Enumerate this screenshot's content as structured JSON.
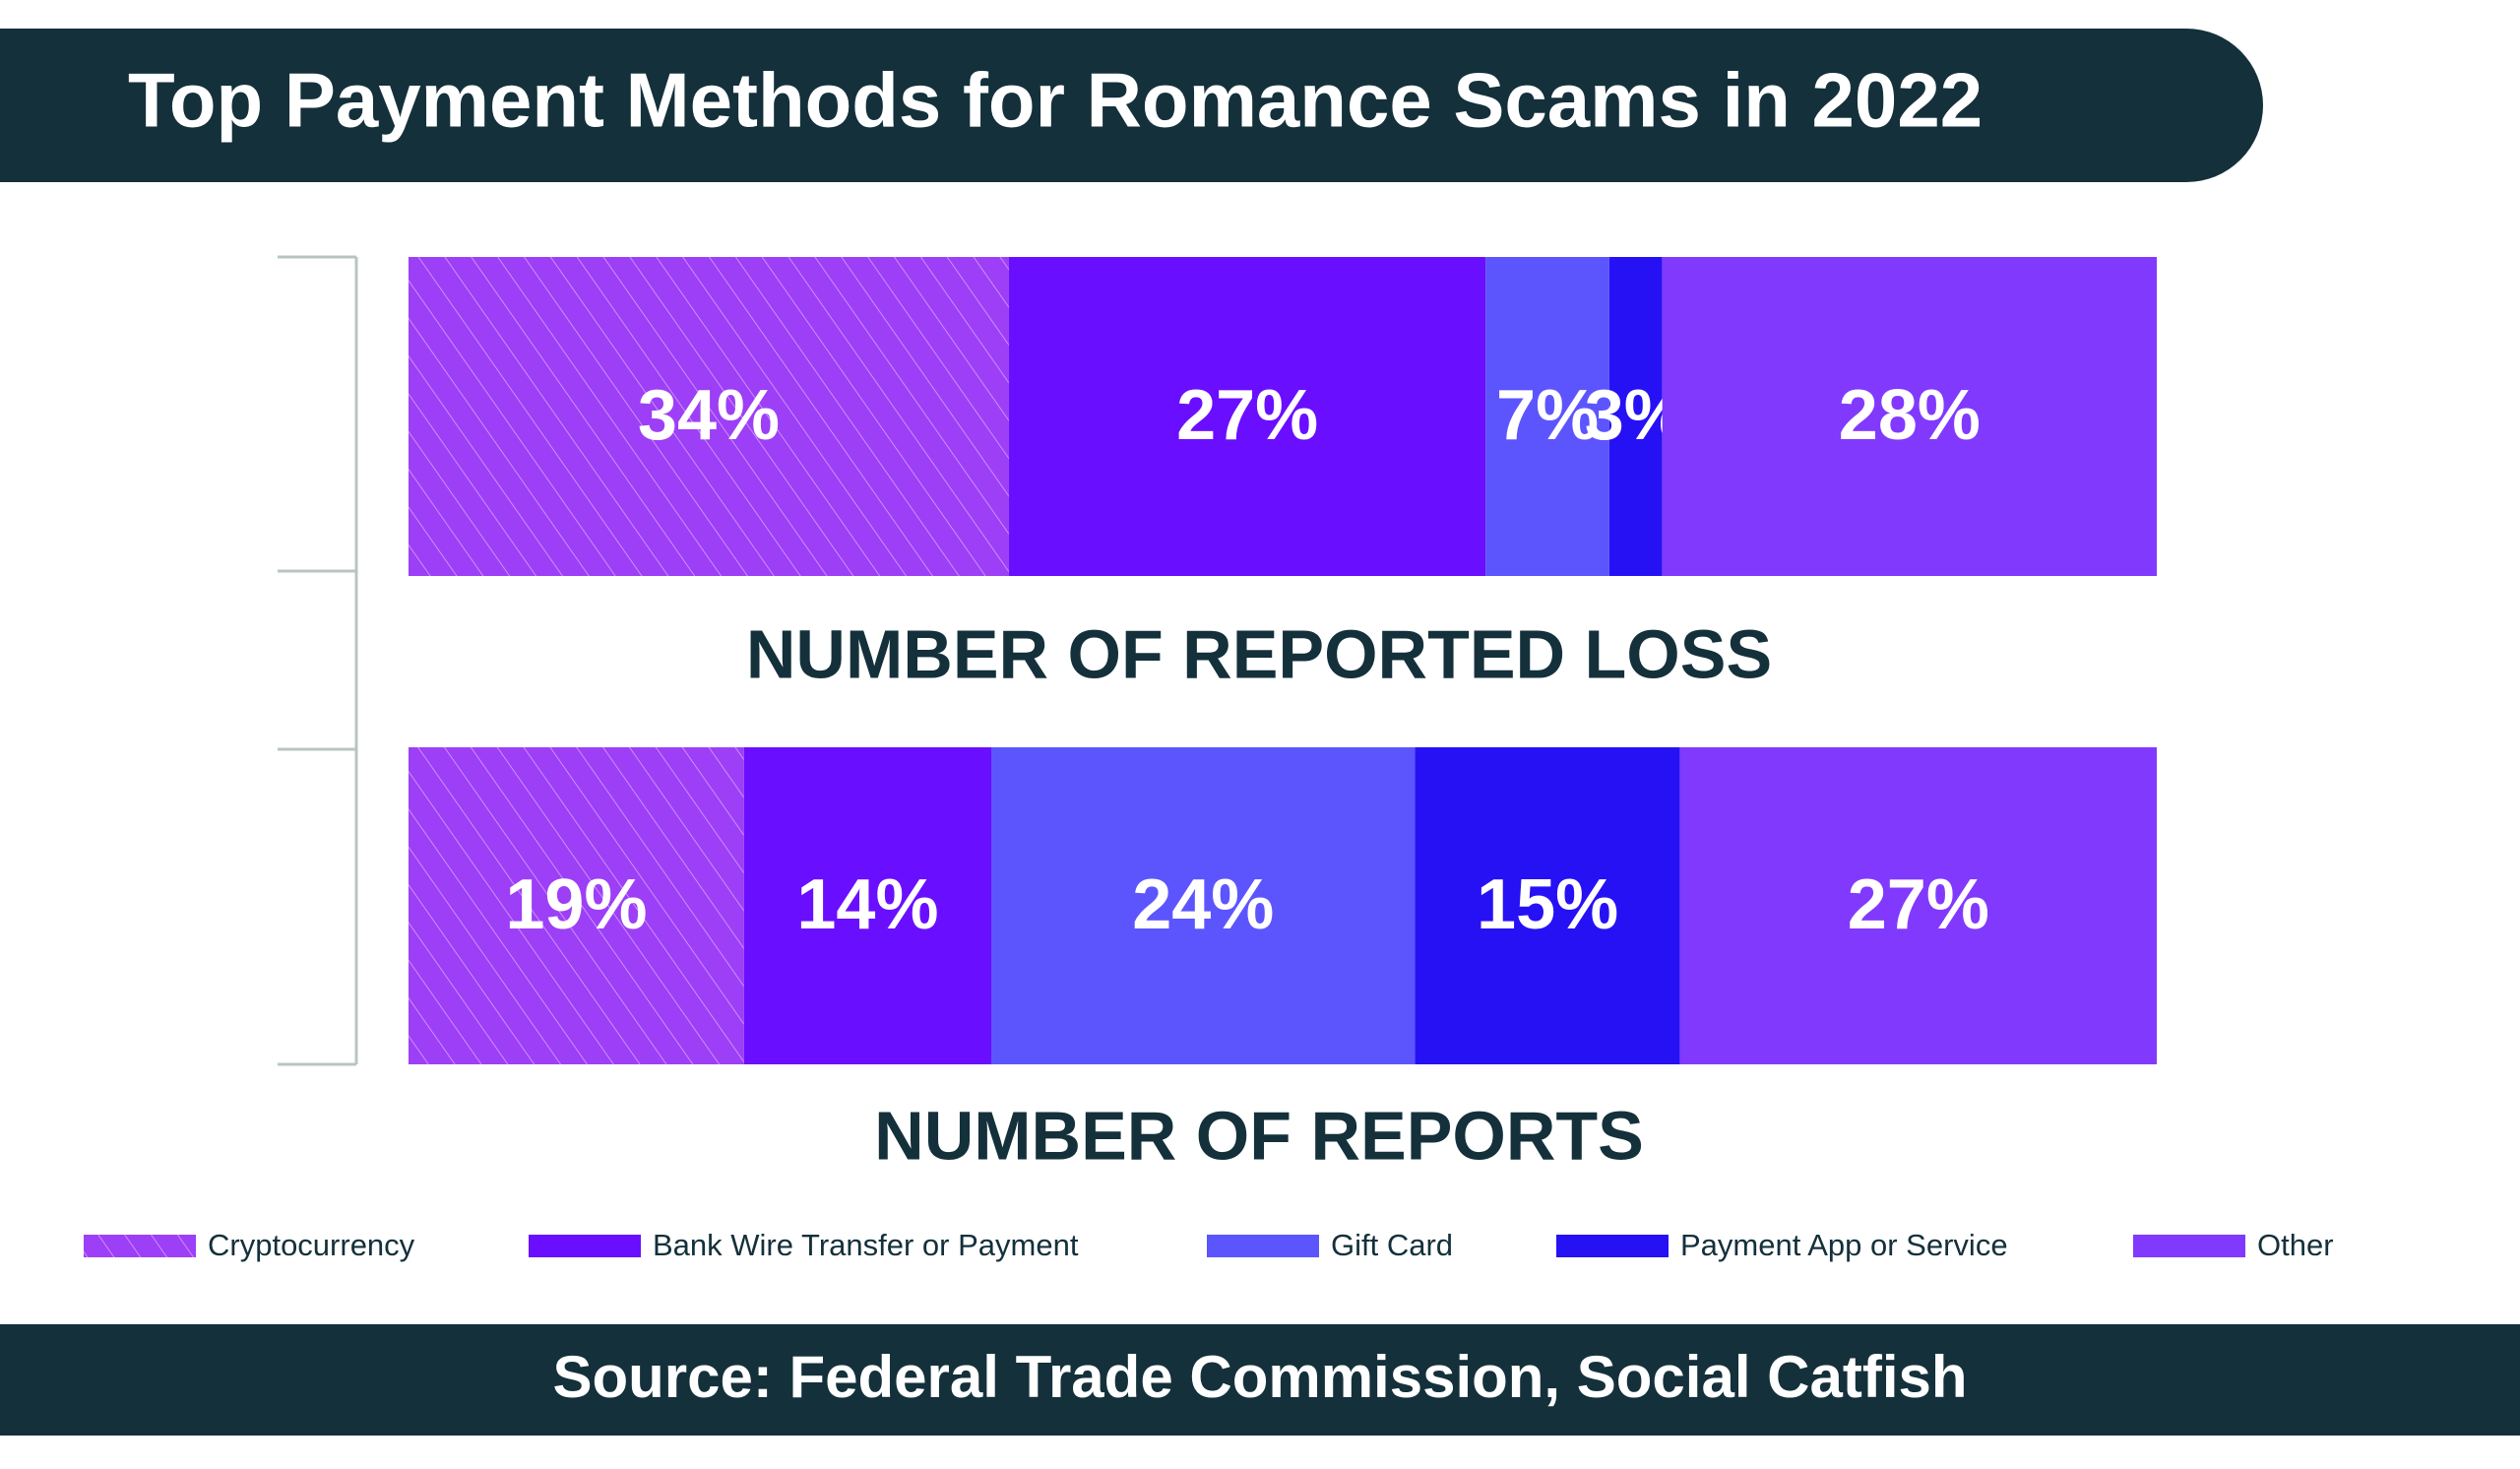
{
  "chart_data": {
    "type": "stacked-bar",
    "title": "Top Payment Methods for Romance Scams in 2022",
    "categories": [
      "NUMBER OF REPORTED LOSS",
      "NUMBER OF REPORTS"
    ],
    "series": [
      {
        "name": "Cryptocurrency",
        "color": "#9d3ff6",
        "values": [
          34,
          19
        ],
        "value_labels": [
          "34%",
          "19%"
        ]
      },
      {
        "name": "Bank Wire Transfer or Payment",
        "color": "#6a0eff",
        "values": [
          27,
          14
        ],
        "value_labels": [
          "27%",
          "14%"
        ]
      },
      {
        "name": "Gift Card",
        "color": "#5c55fe",
        "values": [
          7,
          24
        ],
        "value_labels": [
          "7%",
          "24%"
        ]
      },
      {
        "name": "Payment App or Service",
        "color": "#2611f5",
        "values": [
          3,
          15
        ],
        "value_labels": [
          "3%",
          "15%"
        ]
      },
      {
        "name": "Other",
        "color": "#8139fe",
        "values": [
          28,
          27
        ],
        "value_labels": [
          "28%",
          "27%"
        ]
      }
    ],
    "source": "Source: Federal Trade Commission, Social Catfish"
  }
}
